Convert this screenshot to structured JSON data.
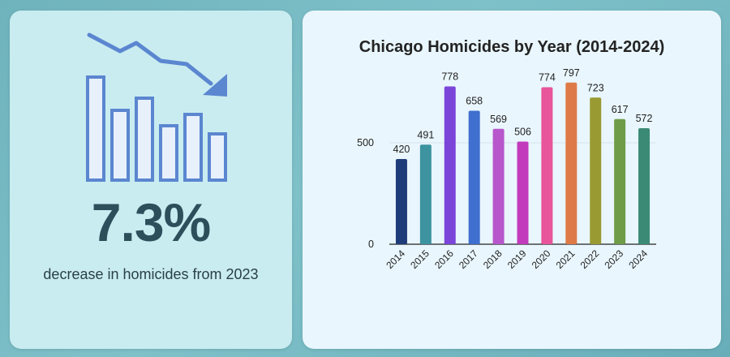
{
  "stat": {
    "value": "7.3%",
    "caption": "decrease in homicides from 2023"
  },
  "illustration": {
    "icon": "declining-bar-chart-icon",
    "color": "#5b86d0",
    "fill": "#e8f0fb"
  },
  "chart_data": {
    "type": "bar",
    "title": "Chicago Homicides by Year (2014-2024)",
    "xlabel": "",
    "ylabel": "",
    "categories": [
      "2014",
      "2015",
      "2016",
      "2017",
      "2018",
      "2019",
      "2020",
      "2021",
      "2022",
      "2023",
      "2024"
    ],
    "values": [
      420,
      491,
      778,
      658,
      569,
      506,
      774,
      797,
      723,
      617,
      572
    ],
    "colors": [
      "#1f3c7a",
      "#3d93a0",
      "#7b45d9",
      "#3f6fcf",
      "#b857cc",
      "#c23bbd",
      "#e8559a",
      "#de7a47",
      "#9a9a33",
      "#6f9c46",
      "#3a8a76"
    ],
    "yticks": [
      0,
      500
    ],
    "ylim": [
      0,
      800
    ],
    "grid": true,
    "legend": "none"
  }
}
